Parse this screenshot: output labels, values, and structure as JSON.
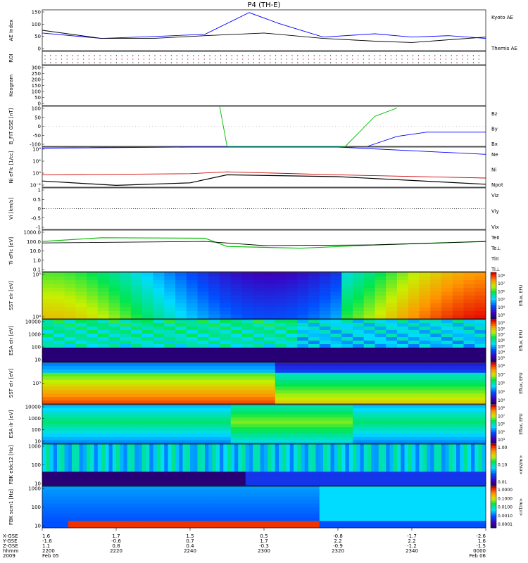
{
  "title": "P4 (TH-E)",
  "colors": {
    "blue": "#0000ff",
    "red": "#d00000",
    "green": "#00c000",
    "black": "#000000"
  },
  "panels": {
    "ae": {
      "ylabel": "AE Index",
      "ticks": [
        "150",
        "100",
        "50",
        "0"
      ],
      "legend": [
        {
          "text": "Kyoto AE",
          "color": "#0000ff"
        },
        {
          "text": "Themis AE",
          "color": "#000000"
        }
      ]
    },
    "roi": {
      "ylabel": "ROI"
    },
    "keogram": {
      "ylabel": "Keogram",
      "ticks": [
        "300",
        "250",
        "200",
        "150",
        "100",
        "50",
        "0"
      ]
    },
    "bfit": {
      "ylabel": "B_FIT GSE [nT]",
      "ticks": [
        "100",
        "50",
        "0",
        "-50",
        "-100"
      ],
      "legend": [
        {
          "text": "Bz",
          "color": "#d00000"
        },
        {
          "text": "By",
          "color": "#00c000"
        },
        {
          "text": "Bx",
          "color": "#0000ff"
        }
      ]
    },
    "ni": {
      "ylabel": "Ni eFIc [1/cc]",
      "ticks": [
        "10⁴",
        "10²",
        "10⁰",
        "10⁻²"
      ],
      "legend": [
        {
          "text": "Ne",
          "color": "#d00000"
        },
        {
          "text": "Ni",
          "color": "#000000"
        },
        {
          "text": "Npot",
          "color": "#0000ff"
        }
      ]
    },
    "vi": {
      "ylabel": "Vi [km/s]",
      "ticks": [
        "1",
        "0.5",
        "0",
        "-0.5",
        "-1"
      ],
      "legend": [
        {
          "text": "Viz",
          "color": "#d00000"
        },
        {
          "text": "Viy",
          "color": "#00c000"
        },
        {
          "text": "Vix",
          "color": "#0000ff"
        }
      ]
    },
    "ti": {
      "ylabel": "Ti eFIc [eV]",
      "ticks": [
        "1000.0",
        "100.0",
        "10.0",
        "1.0",
        "0.1"
      ],
      "legend": [
        {
          "text": "TeII",
          "color": "#000000"
        },
        {
          "text": "Te⊥",
          "color": "#d00000"
        },
        {
          "text": "TiII",
          "color": "#00c000"
        },
        {
          "text": "Ti⊥",
          "color": "#0000ff"
        }
      ]
    },
    "sst1": {
      "ylabel": "SST eIr [eV]",
      "ticks": [
        "10⁵",
        "10⁴"
      ]
    },
    "esa1": {
      "ylabel": "ESA eIr [eV]",
      "ticks": [
        "10000",
        "1000",
        "100",
        "10"
      ]
    },
    "sst2": {
      "ylabel": "SST eIr [eV]",
      "ticks": [
        "10⁵"
      ]
    },
    "esa2": {
      "ylabel": "ESA iIr [eV]",
      "ticks": [
        "10000",
        "1000",
        "100",
        "10"
      ]
    },
    "fbk1": {
      "ylabel": "FBK eIdc12 [Hz]",
      "ticks": [
        "1000",
        "100",
        "10"
      ]
    },
    "fbk2": {
      "ylabel": "FBK scm1 [Hz]",
      "ticks": [
        "1000",
        "100",
        "10"
      ]
    }
  },
  "colorbars": [
    {
      "label": "Eflux, EFU",
      "ticks": [
        "10⁸",
        "10⁷",
        "10⁶",
        "10⁵",
        "10⁴",
        "10³"
      ]
    },
    {
      "label": "Eflux, EFU",
      "ticks": [
        "10⁹",
        "10⁸",
        "10⁷",
        "10⁶",
        "10⁵",
        "10⁴",
        "10³"
      ]
    },
    {
      "label": "Eflux, EFU",
      "ticks": [
        "10⁸",
        "10⁷",
        "10⁶",
        "10⁵",
        "10⁴"
      ]
    },
    {
      "label": "Eflux, EFU",
      "ticks": [
        "10⁸",
        "10⁷",
        "10⁶",
        "10⁵",
        "10⁴"
      ]
    },
    {
      "label": "<mV/m>",
      "ticks": [
        "1.00",
        "0.10",
        "0.01"
      ]
    },
    {
      "label": "<nT/m>",
      "ticks": [
        "1.0000",
        "0.1000",
        "0.0100",
        "0.0010",
        "0.0001"
      ]
    }
  ],
  "xaxis": {
    "row_labels": [
      "X-GSE",
      "Y-GSE",
      "Z-GSE",
      "hhmm",
      "2009"
    ],
    "columns": [
      {
        "x": "1.6",
        "y": "-1.6",
        "z": "1.1",
        "t": "2200",
        "d": "Feb 05"
      },
      {
        "x": "1.7",
        "y": "-0.6",
        "z": "0.8",
        "t": "2220",
        "d": ""
      },
      {
        "x": "1.5",
        "y": "0.7",
        "z": "0.4",
        "t": "2240",
        "d": ""
      },
      {
        "x": "0.5",
        "y": "1.7",
        "z": "-0.3",
        "t": "2300",
        "d": ""
      },
      {
        "x": "-0.8",
        "y": "2.2",
        "z": "-0.9",
        "t": "2320",
        "d": ""
      },
      {
        "x": "-1.7",
        "y": "2.2",
        "z": "-1.2",
        "t": "2340",
        "d": ""
      },
      {
        "x": "-2.6",
        "y": "1.6",
        "z": "-1.5",
        "t": "0000",
        "d": "Feb 06"
      }
    ]
  },
  "chart_data": {
    "type": "line",
    "title": "P4 (TH-E)",
    "x": [
      "2200",
      "2220",
      "2240",
      "2300",
      "2320",
      "2340",
      "0000"
    ],
    "x_positions_hhmm": [
      2200,
      2220,
      2240,
      2300,
      2320,
      2340,
      2400
    ],
    "series": [
      {
        "name": "Kyoto AE",
        "panel": "ae",
        "values": [
          [
            0,
            65
          ],
          [
            8,
            45
          ],
          [
            15,
            52
          ],
          [
            22,
            60
          ],
          [
            28,
            140
          ],
          [
            32,
            100
          ],
          [
            38,
            50
          ],
          [
            45,
            62
          ],
          [
            50,
            50
          ],
          [
            55,
            55
          ],
          [
            60,
            45
          ]
        ]
      },
      {
        "name": "Themis AE",
        "panel": "ae",
        "values": [
          [
            0,
            75
          ],
          [
            8,
            45
          ],
          [
            15,
            45
          ],
          [
            22,
            55
          ],
          [
            30,
            65
          ],
          [
            38,
            45
          ],
          [
            45,
            35
          ],
          [
            50,
            30
          ],
          [
            55,
            40
          ],
          [
            60,
            50
          ]
        ]
      },
      {
        "name": "Bx",
        "panel": "bfit",
        "values": [
          [
            44,
            -120
          ],
          [
            48,
            -60
          ],
          [
            52,
            -35
          ],
          [
            60,
            -35
          ]
        ]
      },
      {
        "name": "By",
        "panel": "bfit",
        "values": [
          [
            24,
            140
          ],
          [
            25,
            -120
          ],
          [
            41,
            -120
          ],
          [
            45,
            60
          ],
          [
            48,
            110
          ]
        ]
      },
      {
        "name": "Npot",
        "panel": "ni",
        "values": [
          [
            0,
            20000
          ],
          [
            20,
            60000
          ],
          [
            40,
            30000
          ],
          [
            60,
            2000
          ]
        ]
      },
      {
        "name": "Ne",
        "panel": "ni",
        "values": [
          [
            0,
            1
          ],
          [
            20,
            1.5
          ],
          [
            25,
            3
          ],
          [
            40,
            1
          ],
          [
            60,
            0.3
          ]
        ]
      },
      {
        "name": "Ni",
        "panel": "ni",
        "values": [
          [
            0,
            0.1
          ],
          [
            10,
            0.02
          ],
          [
            20,
            0.05
          ],
          [
            25,
            1
          ],
          [
            40,
            0.5
          ],
          [
            60,
            0.03
          ]
        ]
      },
      {
        "name": "TiII",
        "panel": "ti",
        "values": [
          [
            0,
            150
          ],
          [
            8,
            400
          ],
          [
            22,
            350
          ],
          [
            25,
            40
          ],
          [
            35,
            25
          ],
          [
            45,
            60
          ],
          [
            60,
            150
          ]
        ]
      },
      {
        "name": "TeII",
        "panel": "ti",
        "values": [
          [
            0,
            100
          ],
          [
            22,
            150
          ],
          [
            30,
            50
          ],
          [
            45,
            60
          ],
          [
            60,
            150
          ]
        ]
      }
    ],
    "ylim": {
      "ae": [
        0,
        150
      ],
      "keogram": [
        0,
        300
      ],
      "bfit": [
        -120,
        120
      ],
      "ni": [
        0.01,
        30000
      ],
      "vi": [
        -1,
        1
      ],
      "ti": [
        0.05,
        3000
      ]
    }
  }
}
